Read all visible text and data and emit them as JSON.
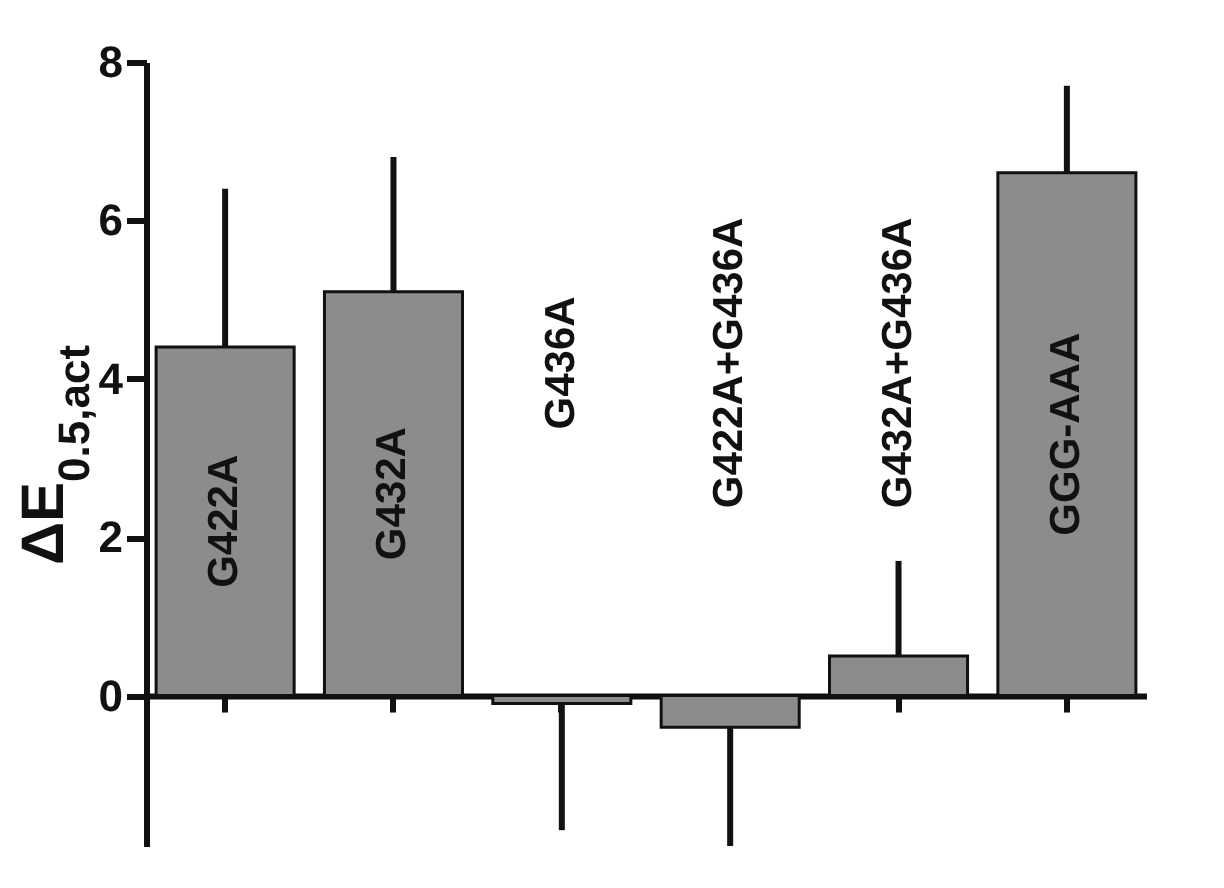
{
  "chart_data": {
    "type": "bar",
    "ylabel": "ΔE$_{0.5,act}$",
    "categories": [
      "G422A",
      "G432A",
      "G436A",
      "G422A+G436A",
      "G432A+G436A",
      "GGG-AAA"
    ],
    "values": [
      4.4,
      5.1,
      -0.1,
      -0.4,
      0.5,
      6.6
    ],
    "errors": [
      [
        4.4,
        6.4
      ],
      [
        5.1,
        6.8
      ],
      [
        -1.7,
        -0.1
      ],
      [
        -1.9,
        -0.4
      ],
      [
        0.5,
        1.7
      ],
      [
        6.6,
        7.7
      ]
    ],
    "color": "#8c8c8c",
    "ylim": [
      -1.9,
      8
    ],
    "yticks": [
      0,
      2,
      4,
      6,
      8
    ]
  }
}
